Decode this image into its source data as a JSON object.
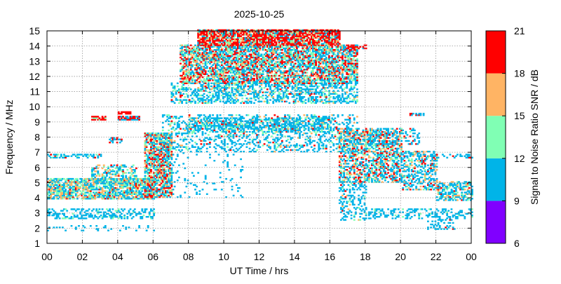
{
  "chart_data": {
    "type": "heatmap",
    "title": "2025-10-25",
    "xlabel": "UT Time / hrs",
    "ylabel": "Frequency / MHz",
    "xlim": [
      0,
      24
    ],
    "ylim": [
      1,
      15
    ],
    "x_ticks": [
      "00",
      "02",
      "04",
      "06",
      "08",
      "10",
      "12",
      "14",
      "16",
      "18",
      "20",
      "22",
      "00"
    ],
    "y_ticks": [
      "1",
      "2",
      "3",
      "4",
      "5",
      "6",
      "7",
      "8",
      "9",
      "10",
      "11",
      "12",
      "13",
      "14",
      "15"
    ],
    "grid": true,
    "colorbar": {
      "label": "Signal to Noise Ratio SNR / dB",
      "ticks": [
        "6",
        "9",
        "12",
        "15",
        "18",
        "21"
      ],
      "bins": [
        {
          "min": 6,
          "max": 9,
          "color": "#8000ff"
        },
        {
          "min": 9,
          "max": 12,
          "color": "#00b4e8"
        },
        {
          "min": 12,
          "max": 15,
          "color": "#80ffb4"
        },
        {
          "min": 15,
          "max": 18,
          "color": "#ffb464"
        },
        {
          "min": 18,
          "max": 21,
          "color": "#ff0000"
        }
      ]
    },
    "bands": [
      {
        "t0": 0,
        "t1": 6,
        "f0": 3.9,
        "f1": 5.2,
        "density": 0.75,
        "snr_mix": [
          0.45,
          0.25,
          0.25,
          0.05
        ]
      },
      {
        "t0": 2.5,
        "t1": 5,
        "f0": 5.2,
        "f1": 6.1,
        "density": 0.45,
        "snr_mix": [
          0.55,
          0.2,
          0.2,
          0.05
        ]
      },
      {
        "t0": 0,
        "t1": 6,
        "f0": 2.6,
        "f1": 3.3,
        "density": 0.35,
        "snr_mix": [
          0.9,
          0.1,
          0,
          0
        ]
      },
      {
        "t0": 0,
        "t1": 6,
        "f0": 1.8,
        "f1": 2.2,
        "density": 0.1,
        "snr_mix": [
          1,
          0,
          0,
          0
        ]
      },
      {
        "t0": 0,
        "t1": 3,
        "f0": 6.6,
        "f1": 6.8,
        "density": 0.55,
        "snr_mix": [
          0.8,
          0.1,
          0,
          0.1
        ]
      },
      {
        "t0": 2.5,
        "t1": 3.3,
        "f0": 9.1,
        "f1": 9.3,
        "density": 0.8,
        "snr_mix": [
          0,
          0.2,
          0,
          0.8
        ]
      },
      {
        "t0": 4,
        "t1": 5.2,
        "f0": 9.1,
        "f1": 9.3,
        "density": 0.8,
        "snr_mix": [
          0.5,
          0,
          0,
          0.5
        ]
      },
      {
        "t0": 4,
        "t1": 4.8,
        "f0": 9.5,
        "f1": 9.7,
        "density": 0.8,
        "snr_mix": [
          0,
          0,
          0,
          1
        ]
      },
      {
        "t0": 3.5,
        "t1": 4.2,
        "f0": 7.6,
        "f1": 7.9,
        "density": 0.6,
        "snr_mix": [
          0.6,
          0,
          0,
          0.4
        ]
      },
      {
        "t0": 5.5,
        "t1": 7,
        "f0": 4,
        "f1": 8.2,
        "density": 0.75,
        "snr_mix": [
          0.35,
          0.2,
          0.2,
          0.25
        ]
      },
      {
        "t0": 6.5,
        "t1": 17.5,
        "f0": 7,
        "f1": 9.4,
        "density": 0.28,
        "snr_mix": [
          0.75,
          0.12,
          0.05,
          0.08
        ]
      },
      {
        "t0": 8,
        "t1": 16,
        "f0": 8.3,
        "f1": 9.2,
        "density": 0.5,
        "snr_mix": [
          0.75,
          0.15,
          0.05,
          0.05
        ]
      },
      {
        "t0": 7,
        "t1": 17.5,
        "f0": 10.2,
        "f1": 11.5,
        "density": 0.45,
        "snr_mix": [
          0.7,
          0.2,
          0.05,
          0.05
        ]
      },
      {
        "t0": 7.5,
        "t1": 17.5,
        "f0": 11.5,
        "f1": 14,
        "density": 0.7,
        "snr_mix": [
          0.4,
          0.2,
          0.15,
          0.25
        ]
      },
      {
        "t0": 8.5,
        "t1": 16.5,
        "f0": 14,
        "f1": 15,
        "density": 0.85,
        "snr_mix": [
          0.15,
          0.1,
          0.15,
          0.6
        ]
      },
      {
        "t0": 7,
        "t1": 11,
        "f0": 4,
        "f1": 7,
        "density": 0.05,
        "snr_mix": [
          1,
          0,
          0,
          0
        ]
      },
      {
        "t0": 16.5,
        "t1": 20,
        "f0": 5,
        "f1": 8.5,
        "density": 0.55,
        "snr_mix": [
          0.5,
          0.15,
          0.15,
          0.2
        ]
      },
      {
        "t0": 16.5,
        "t1": 18,
        "f0": 2.5,
        "f1": 5,
        "density": 0.3,
        "snr_mix": [
          0.8,
          0.1,
          0.05,
          0.05
        ]
      },
      {
        "t0": 20,
        "t1": 22,
        "f0": 4.5,
        "f1": 7,
        "density": 0.45,
        "snr_mix": [
          0.6,
          0.15,
          0.15,
          0.1
        ]
      },
      {
        "t0": 22,
        "t1": 24,
        "f0": 3.8,
        "f1": 5,
        "density": 0.55,
        "snr_mix": [
          0.6,
          0.2,
          0.15,
          0.05
        ]
      },
      {
        "t0": 18,
        "t1": 24,
        "f0": 2.6,
        "f1": 3.3,
        "density": 0.3,
        "snr_mix": [
          0.9,
          0.1,
          0,
          0
        ]
      },
      {
        "t0": 21.5,
        "t1": 23,
        "f0": 1.9,
        "f1": 2.6,
        "density": 0.3,
        "snr_mix": [
          0.8,
          0,
          0,
          0.2
        ]
      },
      {
        "t0": 22,
        "t1": 24,
        "f0": 6.6,
        "f1": 6.8,
        "density": 0.35,
        "snr_mix": [
          0.8,
          0,
          0,
          0.2
        ]
      },
      {
        "t0": 17,
        "t1": 18,
        "f0": 13.8,
        "f1": 14.1,
        "density": 0.7,
        "snr_mix": [
          0.2,
          0,
          0,
          0.8
        ]
      },
      {
        "t0": 20.5,
        "t1": 21.3,
        "f0": 9.4,
        "f1": 9.6,
        "density": 0.6,
        "snr_mix": [
          0.8,
          0,
          0,
          0.2
        ]
      },
      {
        "t0": 18,
        "t1": 21,
        "f0": 7.5,
        "f1": 8.5,
        "density": 0.3,
        "snr_mix": [
          0.7,
          0.1,
          0.1,
          0.1
        ]
      }
    ]
  }
}
